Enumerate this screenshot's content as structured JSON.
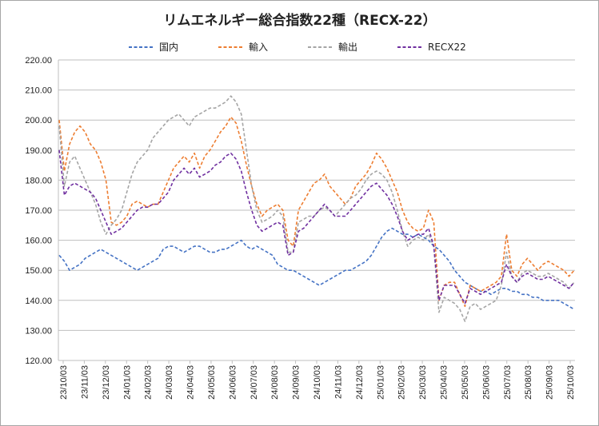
{
  "chart_data": {
    "type": "line",
    "title": "リムエネルギー総合指数22種（RECX-22）",
    "xlabel": "",
    "ylabel": "",
    "ylim": [
      120,
      220
    ],
    "yticks": [
      "120.00",
      "130.00",
      "140.00",
      "150.00",
      "160.00",
      "170.00",
      "180.00",
      "190.00",
      "200.00",
      "210.00",
      "220.00"
    ],
    "xticks": [
      "23/10/03",
      "23/11/03",
      "23/12/03",
      "24/01/03",
      "24/02/03",
      "24/03/03",
      "24/04/03",
      "24/05/03",
      "24/06/03",
      "24/07/03",
      "24/08/03",
      "24/09/03",
      "24/10/03",
      "24/11/03",
      "24/12/03",
      "25/01/03",
      "25/02/03",
      "25/03/03",
      "25/04/03",
      "25/05/03",
      "25/06/03",
      "25/07/03",
      "25/08/03",
      "25/09/03",
      "25/10/03"
    ],
    "grid": true,
    "legend_position": "top",
    "series": [
      {
        "name": "国内",
        "color": "#4472c4",
        "values": [
          155,
          153,
          150,
          151,
          152,
          154,
          155,
          156,
          157,
          156,
          155,
          154,
          153,
          152,
          151,
          150,
          151,
          152,
          153,
          154,
          157,
          158,
          158,
          157,
          156,
          157,
          158,
          158,
          157,
          156,
          156,
          157,
          157,
          158,
          159,
          160,
          158,
          157,
          158,
          157,
          156,
          155,
          152,
          151,
          150,
          150,
          149,
          148,
          147,
          146,
          145,
          146,
          147,
          148,
          149,
          150,
          150,
          151,
          152,
          153,
          155,
          158,
          161,
          163,
          164,
          163,
          162,
          162,
          161,
          162,
          161,
          160,
          158,
          157,
          155,
          153,
          150,
          148,
          146,
          145,
          144,
          143,
          143,
          142,
          143,
          144,
          144,
          143,
          143,
          142,
          142,
          141,
          141,
          140,
          140,
          140,
          140,
          139,
          138,
          137
        ]
      },
      {
        "name": "輸入",
        "color": "#ed7d31",
        "values": [
          200,
          183,
          192,
          196,
          198,
          196,
          192,
          190,
          186,
          180,
          166,
          165,
          166,
          168,
          172,
          173,
          172,
          171,
          172,
          172,
          176,
          180,
          184,
          186,
          188,
          186,
          189,
          184,
          188,
          190,
          193,
          196,
          198,
          201,
          199,
          193,
          185,
          178,
          172,
          168,
          170,
          171,
          172,
          170,
          160,
          158,
          170,
          173,
          176,
          179,
          180,
          182,
          178,
          176,
          174,
          172,
          174,
          178,
          180,
          182,
          185,
          189,
          187,
          184,
          180,
          176,
          170,
          166,
          164,
          163,
          164,
          170,
          166,
          140,
          145,
          146,
          146,
          142,
          138,
          145,
          144,
          143,
          144,
          145,
          146,
          148,
          162,
          150,
          148,
          152,
          154,
          152,
          150,
          152,
          153,
          152,
          151,
          150,
          148,
          150
        ]
      },
      {
        "name": "輸出",
        "color": "#a5a5a5",
        "values": [
          198,
          178,
          186,
          188,
          184,
          180,
          176,
          172,
          166,
          162,
          165,
          167,
          170,
          176,
          182,
          186,
          188,
          190,
          194,
          196,
          198,
          200,
          201,
          202,
          200,
          198,
          201,
          202,
          203,
          204,
          204,
          205,
          206,
          208,
          206,
          202,
          190,
          178,
          170,
          166,
          167,
          168,
          170,
          168,
          156,
          156,
          166,
          167,
          168,
          168,
          170,
          171,
          170,
          168,
          170,
          172,
          174,
          175,
          177,
          180,
          182,
          183,
          182,
          180,
          176,
          170,
          163,
          158,
          160,
          161,
          160,
          162,
          158,
          136,
          141,
          140,
          139,
          137,
          133,
          138,
          139,
          137,
          138,
          139,
          140,
          145,
          156,
          148,
          146,
          149,
          150,
          149,
          148,
          148,
          149,
          148,
          147,
          146,
          144,
          146
        ]
      },
      {
        "name": "RECX22",
        "color": "#7030a0",
        "values": [
          190,
          175,
          178,
          179,
          178,
          177,
          176,
          174,
          170,
          166,
          162,
          163,
          164,
          166,
          168,
          170,
          171,
          171,
          172,
          172,
          174,
          176,
          180,
          182,
          184,
          182,
          184,
          181,
          182,
          183,
          185,
          186,
          188,
          189,
          187,
          183,
          176,
          170,
          165,
          163,
          164,
          165,
          166,
          165,
          155,
          156,
          163,
          164,
          166,
          168,
          170,
          172,
          170,
          168,
          168,
          168,
          170,
          172,
          174,
          176,
          178,
          179,
          177,
          175,
          172,
          168,
          163,
          160,
          161,
          162,
          162,
          164,
          158,
          140,
          145,
          145,
          145,
          142,
          139,
          144,
          143,
          142,
          143,
          144,
          145,
          146,
          152,
          148,
          146,
          148,
          149,
          148,
          147,
          147,
          148,
          147,
          146,
          145,
          144,
          146
        ]
      }
    ]
  }
}
